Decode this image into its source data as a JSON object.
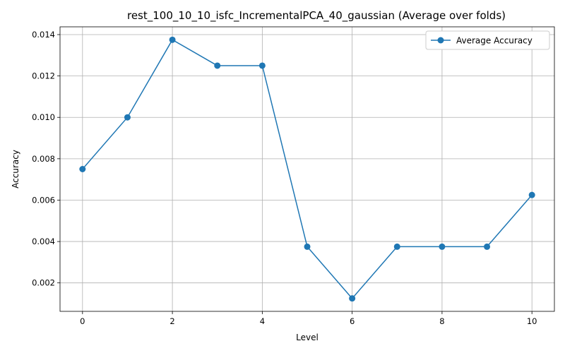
{
  "chart_data": {
    "type": "line",
    "title": "rest_100_10_10_isfc_IncrementalPCA_40_gaussian (Average over folds)",
    "xlabel": "Level",
    "ylabel": "Accuracy",
    "x": [
      0,
      1,
      2,
      3,
      4,
      5,
      6,
      7,
      8,
      9,
      10
    ],
    "series": [
      {
        "name": "Average Accuracy",
        "color": "#1f77b4",
        "marker": "circle",
        "values": [
          0.0075,
          0.01,
          0.01375,
          0.0125,
          0.0125,
          0.00375,
          0.00125,
          0.00375,
          0.00375,
          0.00375,
          0.00625
        ]
      }
    ],
    "xlim": [
      -0.5,
      10.5
    ],
    "ylim": [
      0.000625,
      0.014375
    ],
    "xticks": [
      0,
      2,
      4,
      6,
      8,
      10
    ],
    "xtick_labels": [
      "0",
      "2",
      "4",
      "6",
      "8",
      "10"
    ],
    "yticks": [
      0.002,
      0.004,
      0.006,
      0.008,
      0.01,
      0.012,
      0.014
    ],
    "ytick_labels": [
      "0.002",
      "0.004",
      "0.006",
      "0.008",
      "0.010",
      "0.012",
      "0.014"
    ],
    "grid": true,
    "legend_position": "top-right"
  }
}
